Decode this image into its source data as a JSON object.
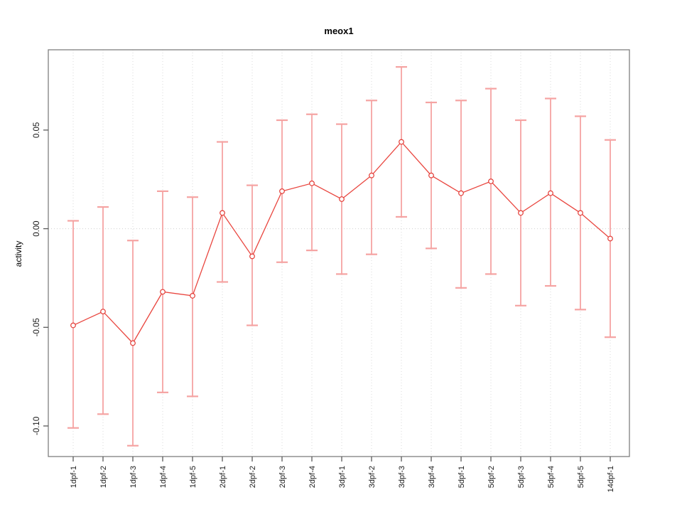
{
  "title": "meox1",
  "chart_data": {
    "type": "line",
    "title": "meox1",
    "xlabel": "",
    "ylabel": "activity",
    "categories": [
      "1dpf-1",
      "1dpf-2",
      "1dpf-3",
      "1dpf-4",
      "1dpf-5",
      "2dpf-1",
      "2dpf-2",
      "2dpf-3",
      "2dpf-4",
      "3dpf-1",
      "3dpf-2",
      "3dpf-3",
      "3dpf-4",
      "5dpf-1",
      "5dpf-2",
      "5dpf-3",
      "5dpf-4",
      "5dpf-5",
      "14dpf-1"
    ],
    "series": [
      {
        "name": "activity",
        "values": [
          -0.049,
          -0.042,
          -0.058,
          -0.032,
          -0.034,
          0.008,
          -0.014,
          0.019,
          0.023,
          0.015,
          0.027,
          0.044,
          0.027,
          0.018,
          0.024,
          0.008,
          0.018,
          0.008,
          -0.005
        ],
        "error_upper": [
          0.004,
          0.011,
          -0.006,
          0.019,
          0.016,
          0.044,
          0.022,
          0.055,
          0.058,
          0.053,
          0.065,
          0.082,
          0.064,
          0.065,
          0.071,
          0.055,
          0.066,
          0.057,
          0.045
        ],
        "error_lower": [
          -0.101,
          -0.094,
          -0.11,
          -0.083,
          -0.085,
          -0.027,
          -0.049,
          -0.017,
          -0.011,
          -0.023,
          -0.013,
          0.006,
          -0.01,
          -0.03,
          -0.023,
          -0.039,
          -0.029,
          -0.041,
          -0.055
        ]
      }
    ],
    "yticks": [
      0.05,
      0.0,
      -0.05,
      -0.1
    ],
    "ytick_labels": [
      "0.05",
      "0.00",
      "-0.05",
      "-0.10"
    ],
    "ylim": [
      -0.1155,
      0.0907
    ],
    "grid": {
      "vertical_dotted_per_category": true,
      "horizontal_dotted_at_zero": true
    },
    "legend": "none",
    "marker": "open-circle",
    "colors": {
      "line": "#e9463f",
      "point_stroke": "#e33b35",
      "point_fill": "#ffffff",
      "error_bar": "#f5a3a2",
      "grid": "#d9d9d9",
      "zero_line": "#d0d0d0",
      "axis_box": "#7f7f7f",
      "tick": "#5a5a5a",
      "text": "#1a1a1a"
    }
  }
}
